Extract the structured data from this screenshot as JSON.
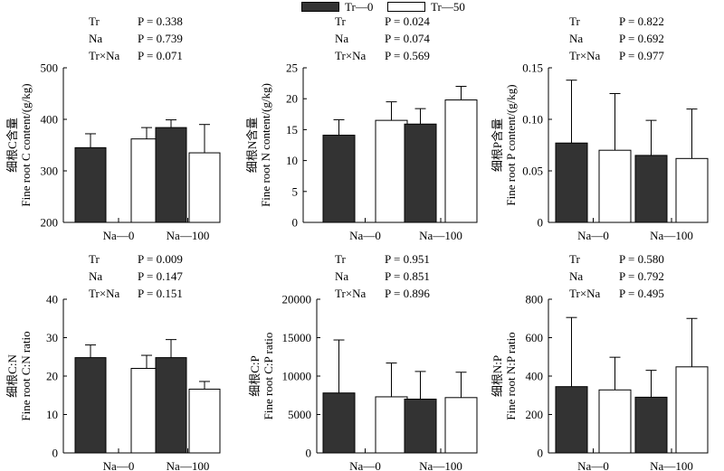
{
  "legend": {
    "items": [
      {
        "label": "Tr—0",
        "color": "#333333"
      },
      {
        "label": "Tr—50",
        "color": "#ffffff"
      }
    ]
  },
  "colors": {
    "tr0": "#333333",
    "tr50": "#ffffff",
    "stroke": "#000000"
  },
  "chart_data": [
    {
      "type": "bar",
      "ylabel_cn": "细根C含量",
      "ylabel_en": "Fine root C content/(g/kg)",
      "categories": [
        "Na—0",
        "Na—100"
      ],
      "ylim": [
        200,
        500
      ],
      "yticks": [
        200,
        300,
        400,
        500
      ],
      "series": [
        {
          "name": "Tr—0",
          "values": [
            345,
            384
          ],
          "errors": [
            27,
            15
          ]
        },
        {
          "name": "Tr—50",
          "values": [
            362,
            335
          ],
          "errors": [
            22,
            55
          ]
        }
      ],
      "stats": [
        {
          "factor": "Tr",
          "p": "P = 0.338"
        },
        {
          "factor": "Na",
          "p": "P = 0.739"
        },
        {
          "factor": "Tr×Na",
          "p": "P = 0.071"
        }
      ]
    },
    {
      "type": "bar",
      "ylabel_cn": "细根N含量",
      "ylabel_en": "Fine root N content/(g/kg)",
      "categories": [
        "Na—0",
        "Na—100"
      ],
      "ylim": [
        0,
        25
      ],
      "yticks": [
        0,
        5,
        10,
        15,
        20,
        25
      ],
      "series": [
        {
          "name": "Tr—0",
          "values": [
            14.1,
            15.9
          ],
          "errors": [
            2.5,
            2.5
          ]
        },
        {
          "name": "Tr—50",
          "values": [
            16.5,
            19.8
          ],
          "errors": [
            3.0,
            2.2
          ]
        }
      ],
      "stats": [
        {
          "factor": "Tr",
          "p": "P = 0.024"
        },
        {
          "factor": "Na",
          "p": "P = 0.074"
        },
        {
          "factor": "Tr×Na",
          "p": "P = 0.569"
        }
      ]
    },
    {
      "type": "bar",
      "ylabel_cn": "细根P含量",
      "ylabel_en": "Fine root P content/(g/kg)",
      "categories": [
        "Na—0",
        "Na—100"
      ],
      "ylim": [
        0,
        0.15
      ],
      "yticks": [
        0,
        0.05,
        0.1,
        0.15
      ],
      "ytick_labels": [
        "0",
        "0.05",
        "0.10",
        "0.15"
      ],
      "series": [
        {
          "name": "Tr—0",
          "values": [
            0.077,
            0.065
          ],
          "errors": [
            0.061,
            0.034
          ]
        },
        {
          "name": "Tr—50",
          "values": [
            0.07,
            0.062
          ],
          "errors": [
            0.055,
            0.048
          ]
        }
      ],
      "stats": [
        {
          "factor": "Tr",
          "p": "P = 0.822"
        },
        {
          "factor": "Na",
          "p": "P = 0.692"
        },
        {
          "factor": "Tr×Na",
          "p": "P = 0.977"
        }
      ]
    },
    {
      "type": "bar",
      "ylabel_cn": "细根C:N",
      "ylabel_en": "Fine root C:N ratio",
      "categories": [
        "Na—0",
        "Na—100"
      ],
      "ylim": [
        0,
        40
      ],
      "yticks": [
        0,
        10,
        20,
        30,
        40
      ],
      "series": [
        {
          "name": "Tr—0",
          "values": [
            24.8,
            24.8
          ],
          "errors": [
            3.3,
            4.7
          ]
        },
        {
          "name": "Tr—50",
          "values": [
            22.0,
            16.6
          ],
          "errors": [
            3.4,
            2.0
          ]
        }
      ],
      "stats": [
        {
          "factor": "Tr",
          "p": "P = 0.009"
        },
        {
          "factor": "Na",
          "p": "P = 0.147"
        },
        {
          "factor": "Tr×Na",
          "p": "P = 0.151"
        }
      ]
    },
    {
      "type": "bar",
      "ylabel_cn": "细根C:P",
      "ylabel_en": "Fine root C:P ratio",
      "categories": [
        "Na—0",
        "Na—100"
      ],
      "ylim": [
        0,
        20000
      ],
      "yticks": [
        0,
        5000,
        10000,
        15000,
        20000
      ],
      "series": [
        {
          "name": "Tr—0",
          "values": [
            7800,
            7000
          ],
          "errors": [
            6900,
            3600
          ]
        },
        {
          "name": "Tr—50",
          "values": [
            7300,
            7200
          ],
          "errors": [
            4400,
            3300
          ]
        }
      ],
      "stats": [
        {
          "factor": "Tr",
          "p": "P = 0.951"
        },
        {
          "factor": "Na",
          "p": "P = 0.851"
        },
        {
          "factor": "Tr×Na",
          "p": "P = 0.896"
        }
      ]
    },
    {
      "type": "bar",
      "ylabel_cn": "细根N:P",
      "ylabel_en": "Fine root N:P ratio",
      "categories": [
        "Na—0",
        "Na—100"
      ],
      "ylim": [
        0,
        800
      ],
      "yticks": [
        0,
        200,
        400,
        600,
        800
      ],
      "series": [
        {
          "name": "Tr—0",
          "values": [
            345,
            290
          ],
          "errors": [
            360,
            140
          ]
        },
        {
          "name": "Tr—50",
          "values": [
            328,
            448
          ],
          "errors": [
            170,
            252
          ]
        }
      ],
      "stats": [
        {
          "factor": "Tr",
          "p": "P = 0.580"
        },
        {
          "factor": "Na",
          "p": "P = 0.792"
        },
        {
          "factor": "Tr×Na",
          "p": "P = 0.495"
        }
      ]
    }
  ]
}
